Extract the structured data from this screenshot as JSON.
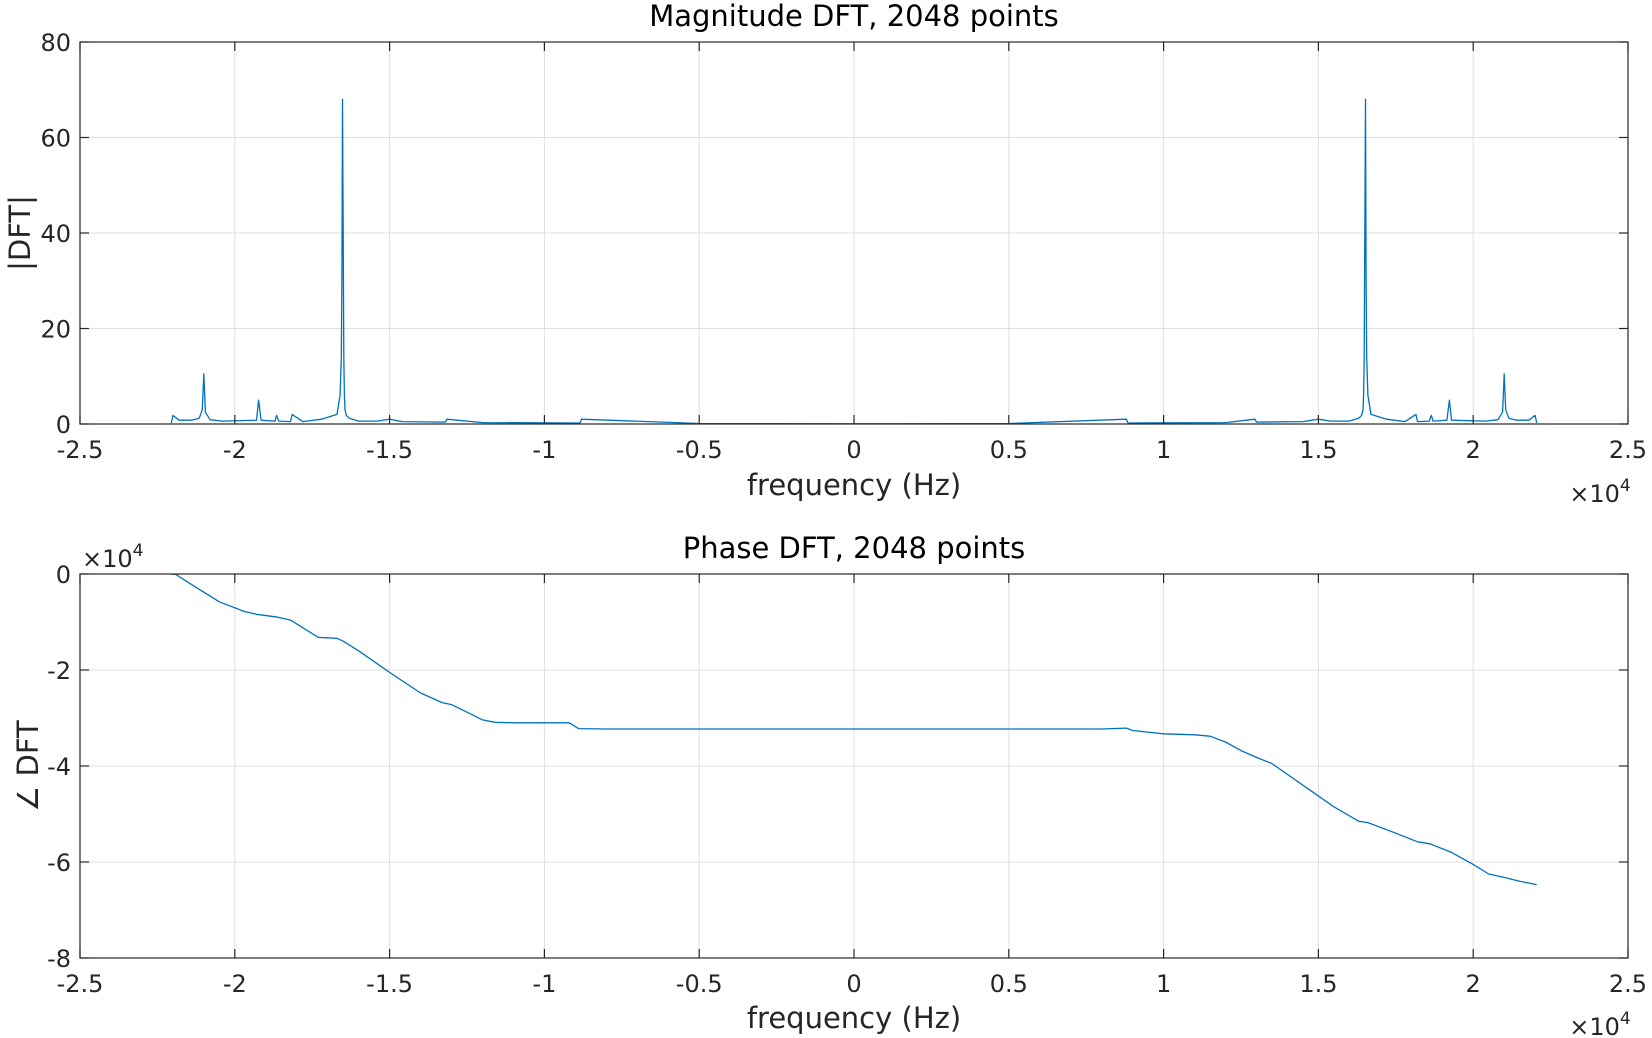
{
  "chart_data": [
    {
      "type": "line",
      "title": "Magnitude DFT, 2048 points",
      "xlabel": "frequency (Hz)",
      "ylabel": "|DFT|",
      "xlim": [
        -25000,
        25000
      ],
      "ylim": [
        0,
        80
      ],
      "xtick_labels": [
        "-2.5",
        "-2",
        "-1.5",
        "-1",
        "-0.5",
        "0",
        "0.5",
        "1",
        "1.5",
        "2",
        "2.5"
      ],
      "ytick_labels": [
        "0",
        "20",
        "40",
        "60",
        "80"
      ],
      "x_multiplier": {
        "base": "×10",
        "exponent": "4"
      },
      "grid": true,
      "line_color": "#0072BD",
      "series": [
        {
          "x": [
            -22050,
            -22000,
            -21800,
            -21400,
            -21150,
            -21050,
            -21000,
            -20950,
            -20800,
            -20400,
            -19300,
            -19230,
            -19150,
            -18700,
            -18650,
            -18580,
            -18200,
            -18150,
            -17800,
            -17200,
            -16700,
            -16600,
            -16560,
            -16540,
            -16520,
            -16500,
            -16480,
            -16460,
            -16440,
            -16400,
            -16300,
            -16000,
            -15400,
            -15000,
            -14600,
            -13200,
            -13150,
            -12000,
            -9000,
            -8850,
            -8800,
            -5000,
            0,
            5000,
            8800,
            8850,
            9000,
            12000,
            12950,
            13000,
            14500,
            15000,
            15400,
            16000,
            16300,
            16400,
            16440,
            16460,
            16480,
            16500,
            16520,
            16540,
            16560,
            16600,
            16700,
            17200,
            17800,
            18150,
            18200,
            18580,
            18650,
            18700,
            19150,
            19230,
            19300,
            20400,
            20800,
            20950,
            21000,
            21050,
            21150,
            21400,
            21800,
            22000,
            22050
          ],
          "y": [
            0.2,
            1.8,
            0.8,
            0.8,
            1.2,
            3.0,
            10.5,
            2.5,
            0.9,
            0.6,
            0.8,
            5.0,
            0.8,
            0.6,
            1.8,
            0.6,
            0.5,
            2.0,
            0.5,
            1.0,
            2.0,
            6.0,
            14.0,
            30.0,
            68.0,
            40.0,
            14.0,
            6.0,
            3.0,
            1.8,
            1.2,
            0.6,
            0.6,
            1.0,
            0.5,
            0.4,
            1.0,
            0.3,
            0.2,
            0.2,
            1.0,
            0.1,
            0.05,
            0.1,
            1.0,
            0.2,
            0.2,
            0.3,
            1.0,
            0.4,
            0.5,
            1.0,
            0.6,
            0.6,
            1.2,
            1.8,
            3.0,
            6.0,
            14.0,
            40.0,
            68.0,
            30.0,
            14.0,
            6.0,
            2.0,
            1.0,
            0.5,
            2.0,
            0.5,
            0.6,
            1.8,
            0.6,
            0.8,
            5.0,
            0.8,
            0.6,
            0.9,
            2.5,
            10.5,
            3.0,
            1.2,
            0.8,
            0.8,
            1.8,
            0.2
          ]
        }
      ]
    },
    {
      "type": "line",
      "title": "Phase DFT, 2048 points",
      "xlabel": "frequency (Hz)",
      "ylabel": "∠ DFT",
      "xlim": [
        -25000,
        25000
      ],
      "ylim": [
        -80000,
        0
      ],
      "xtick_labels": [
        "-2.5",
        "-2",
        "-1.5",
        "-1",
        "-0.5",
        "0",
        "0.5",
        "1",
        "1.5",
        "2",
        "2.5"
      ],
      "ytick_labels": [
        "-8",
        "-6",
        "-4",
        "-2",
        "0"
      ],
      "x_multiplier": {
        "base": "×10",
        "exponent": "4"
      },
      "y_multiplier": {
        "base": "×10",
        "exponent": "4"
      },
      "grid": true,
      "line_color": "#0072BD",
      "series": [
        {
          "x": [
            -22050,
            -21900,
            -21500,
            -21000,
            -20500,
            -19700,
            -19300,
            -18600,
            -18200,
            -17300,
            -16700,
            -16500,
            -16000,
            -15000,
            -14000,
            -13300,
            -13000,
            -12500,
            -12000,
            -11600,
            -11000,
            -10000,
            -9200,
            -8900,
            -8000,
            0,
            8000,
            8800,
            9000,
            10000,
            11000,
            11500,
            12000,
            12500,
            13000,
            13500,
            14500,
            15500,
            16300,
            16600,
            17300,
            18200,
            18600,
            19300,
            20000,
            20500,
            21000,
            21500,
            22050
          ],
          "y": [
            0,
            -100,
            -1800,
            -3800,
            -5800,
            -7800,
            -8400,
            -9000,
            -9600,
            -13200,
            -13400,
            -14000,
            -16000,
            -20500,
            -24800,
            -26800,
            -27200,
            -28800,
            -30400,
            -30900,
            -31000,
            -31000,
            -31000,
            -32200,
            -32300,
            -32300,
            -32300,
            -32100,
            -32600,
            -33300,
            -33500,
            -33800,
            -35000,
            -36800,
            -38200,
            -39500,
            -44000,
            -48500,
            -51500,
            -51800,
            -53500,
            -55800,
            -56200,
            -58000,
            -60500,
            -62500,
            -63200,
            -64000,
            -64700
          ]
        }
      ]
    }
  ]
}
